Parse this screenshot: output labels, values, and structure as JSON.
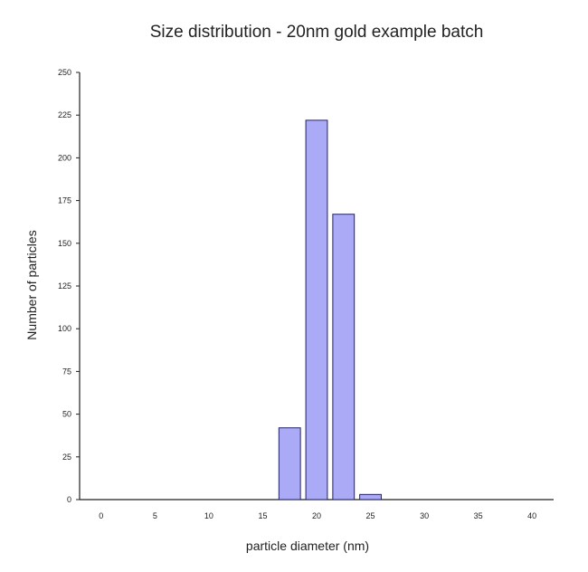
{
  "chart_data": {
    "type": "bar",
    "title": "Size distribution - 20nm gold example batch",
    "xlabel": "particle diameter (nm)",
    "ylabel": "Number of particles",
    "xlim": [
      -2,
      42
    ],
    "ylim": [
      0,
      250
    ],
    "x_ticks": [
      "0",
      "5",
      "10",
      "15",
      "20",
      "25",
      "30",
      "35",
      "40"
    ],
    "y_ticks": [
      "0",
      "25",
      "50",
      "75",
      "100",
      "125",
      "150",
      "175",
      "200",
      "225",
      "250"
    ],
    "bins": [
      17.5,
      20,
      22.5,
      25
    ],
    "values": [
      42,
      222,
      167,
      3
    ],
    "bar_color": "#aaaaf6",
    "bar_edge_color": "#22226a",
    "grid": false,
    "legend": "none"
  }
}
